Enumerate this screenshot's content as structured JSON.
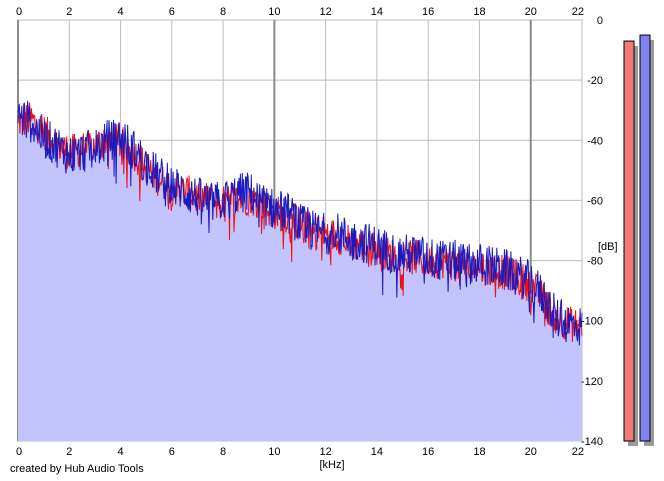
{
  "credit": "created by Hub Audio Tools",
  "chart_data": {
    "type": "line",
    "x_unit_label": "[kHz]",
    "y_unit_label": "[dB]",
    "xlim": [
      0,
      22
    ],
    "ylim": [
      -140,
      0
    ],
    "x_ticks": [
      0,
      2,
      4,
      6,
      8,
      10,
      12,
      14,
      16,
      18,
      20,
      22
    ],
    "y_ticks": [
      0,
      -20,
      -40,
      -60,
      -80,
      -100,
      -120,
      -140
    ],
    "grid": true,
    "colors": {
      "fill": "#c3c3fd",
      "red_series": "#ee1111",
      "blue_series": "#1a1abf",
      "grid_minor": "#bdbdbd",
      "grid_major": "#8a8a8a",
      "meter_red": "#f07a7a",
      "meter_blue": "#8080f0"
    },
    "series": [
      {
        "x": [
          0,
          0.5,
          1,
          1.5,
          2,
          2.5,
          3,
          3.5,
          4,
          4.5,
          5,
          5.5,
          6,
          6.5,
          7,
          7.5,
          8,
          8.5,
          9,
          9.5,
          10,
          10.5,
          11,
          11.5,
          12,
          12.5,
          13,
          13.5,
          14,
          14.5,
          15,
          15.5,
          16,
          16.5,
          17,
          17.5,
          18,
          18.5,
          19,
          19.5,
          20,
          20.5,
          21,
          21.5,
          22
        ],
        "y": [
          -34,
          -33,
          -37,
          -41,
          -44,
          -43,
          -42,
          -39,
          -41,
          -44,
          -49,
          -53,
          -56,
          -57,
          -59,
          -60,
          -61,
          -60,
          -59,
          -61,
          -64,
          -65,
          -68,
          -70,
          -71,
          -72,
          -74,
          -75,
          -76,
          -78,
          -79,
          -79,
          -80,
          -80,
          -81,
          -82,
          -82,
          -83,
          -84,
          -86,
          -88,
          -93,
          -99,
          -101,
          -102
        ]
      },
      {
        "x": [
          0,
          0.5,
          1,
          1.5,
          2,
          2.5,
          3,
          3.5,
          4,
          4.5,
          5,
          5.5,
          6,
          6.5,
          7,
          7.5,
          8,
          8.5,
          9,
          9.5,
          10,
          10.5,
          11,
          11.5,
          12,
          12.5,
          13,
          13.5,
          14,
          14.5,
          15,
          15.5,
          16,
          16.5,
          17,
          17.5,
          18,
          18.5,
          19,
          19.5,
          20,
          20.5,
          21,
          21.5,
          22
        ],
        "y": [
          -32,
          -34,
          -39,
          -42,
          -45,
          -44,
          -43,
          -40,
          -39,
          -43,
          -48,
          -52,
          -55,
          -57,
          -59,
          -61,
          -60,
          -58,
          -57,
          -61,
          -63,
          -64,
          -68,
          -70,
          -71,
          -71,
          -73,
          -74,
          -75,
          -77,
          -78,
          -78,
          -79,
          -80,
          -80,
          -81,
          -81,
          -82,
          -83,
          -85,
          -87,
          -92,
          -99,
          -101,
          -102
        ]
      }
    ],
    "level_meters": [
      {
        "top_db": -7
      },
      {
        "top_db": -5
      }
    ]
  }
}
